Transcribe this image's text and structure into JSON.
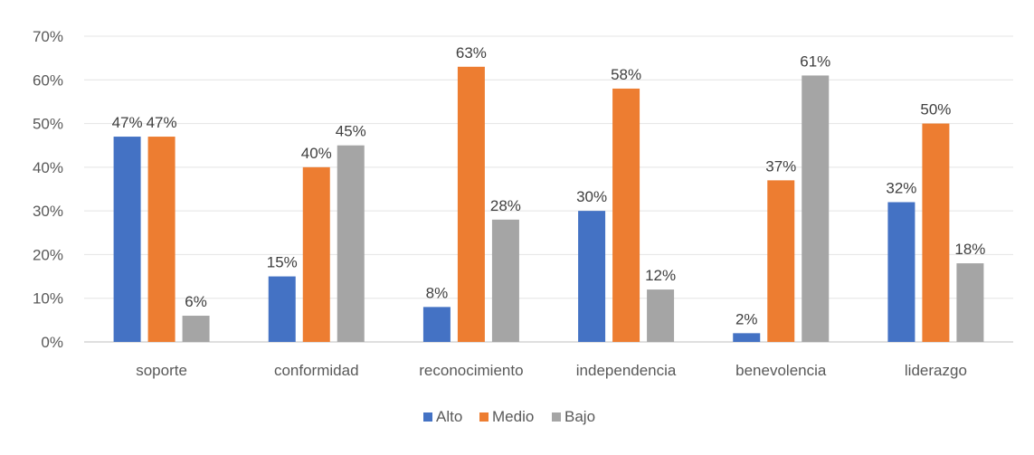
{
  "chart_data": {
    "type": "bar",
    "categories": [
      "soporte",
      "conformidad",
      "reconocimiento",
      "independencia",
      "benevolencia",
      "liderazgo"
    ],
    "series": [
      {
        "name": "Alto",
        "color": "#4472C4",
        "values": [
          47,
          15,
          8,
          30,
          2,
          32
        ]
      },
      {
        "name": "Medio",
        "color": "#ED7D31",
        "values": [
          47,
          40,
          63,
          58,
          37,
          50
        ]
      },
      {
        "name": "Bajo",
        "color": "#A5A5A5",
        "values": [
          6,
          45,
          28,
          12,
          61,
          18
        ]
      }
    ],
    "ylim": [
      0,
      70
    ],
    "y_ticks": [
      "0%",
      "10%",
      "20%",
      "30%",
      "40%",
      "50%",
      "60%",
      "70%"
    ],
    "value_suffix": "%",
    "grid": true,
    "legend_position": "bottom"
  }
}
